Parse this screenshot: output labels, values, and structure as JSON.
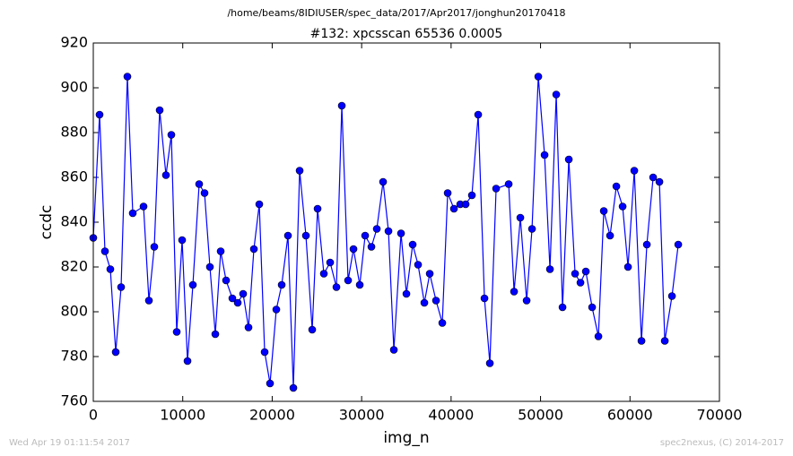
{
  "chart_data": {
    "type": "line",
    "suptitle": "/home/beams/8IDIUSER/spec_data/2017/Apr2017/jonghun20170418",
    "title": "#132: xpcsscan 65536 0.0005",
    "xlabel": "img_n",
    "ylabel": "ccdc",
    "footer_left": "Wed Apr 19 01:11:54 2017",
    "footer_right": "spec2nexus, (C) 2014-2017",
    "xlim": [
      0,
      70000
    ],
    "ylim": [
      760,
      920
    ],
    "xticks": [
      0,
      10000,
      20000,
      30000,
      40000,
      50000,
      60000,
      70000
    ],
    "yticks": [
      760,
      780,
      800,
      820,
      840,
      860,
      880,
      900,
      920
    ],
    "x": [
      0,
      702,
      1304,
      1906,
      2508,
      3109,
      3811,
      4413,
      5617,
      6219,
      6820,
      7422,
      8124,
      8726,
      9328,
      9930,
      10532,
      11133,
      11835,
      12437,
      13039,
      13641,
      14243,
      14844,
      15547,
      16148,
      16750,
      17352,
      17954,
      18556,
      19157,
      19759,
      20461,
      21063,
      21765,
      22367,
      23069,
      23771,
      24473,
      25075,
      25777,
      26479,
      27181,
      27783,
      28485,
      29087,
      29789,
      30391,
      31093,
      31695,
      32397,
      32999,
      33601,
      34403,
      35005,
      35707,
      36309,
      37011,
      37613,
      38315,
      39017,
      39619,
      40321,
      41023,
      41625,
      42327,
      43029,
      43731,
      44333,
      45035,
      46439,
      47041,
      47743,
      48445,
      49047,
      49749,
      50451,
      51053,
      51755,
      52457,
      53159,
      53861,
      54463,
      55065,
      55767,
      56469,
      57071,
      57773,
      58475,
      59177,
      59779,
      60481,
      61283,
      61885,
      62587,
      63289,
      63891,
      64694,
      65396
    ],
    "series": [
      {
        "color": "#0000ff",
        "values": [
          833,
          888,
          827,
          819,
          782,
          811,
          905,
          844,
          847,
          805,
          829,
          890,
          861,
          879,
          791,
          832,
          778,
          812,
          857,
          853,
          820,
          790,
          827,
          814,
          806,
          804,
          808,
          793,
          828,
          848,
          782,
          768,
          801,
          812,
          834,
          766,
          863,
          834,
          792,
          846,
          817,
          822,
          811,
          892,
          814,
          828,
          812,
          834,
          829,
          837,
          858,
          836,
          783,
          835,
          808,
          830,
          821,
          804,
          817,
          805,
          795,
          853,
          846,
          848,
          848,
          852,
          888,
          806,
          777,
          855,
          857,
          809,
          842,
          805,
          837,
          905,
          870,
          819,
          897,
          802,
          868,
          817,
          813,
          818,
          802,
          789,
          845,
          834,
          856,
          847,
          820,
          863,
          787,
          830,
          860,
          858,
          787,
          807,
          830
        ]
      }
    ]
  }
}
